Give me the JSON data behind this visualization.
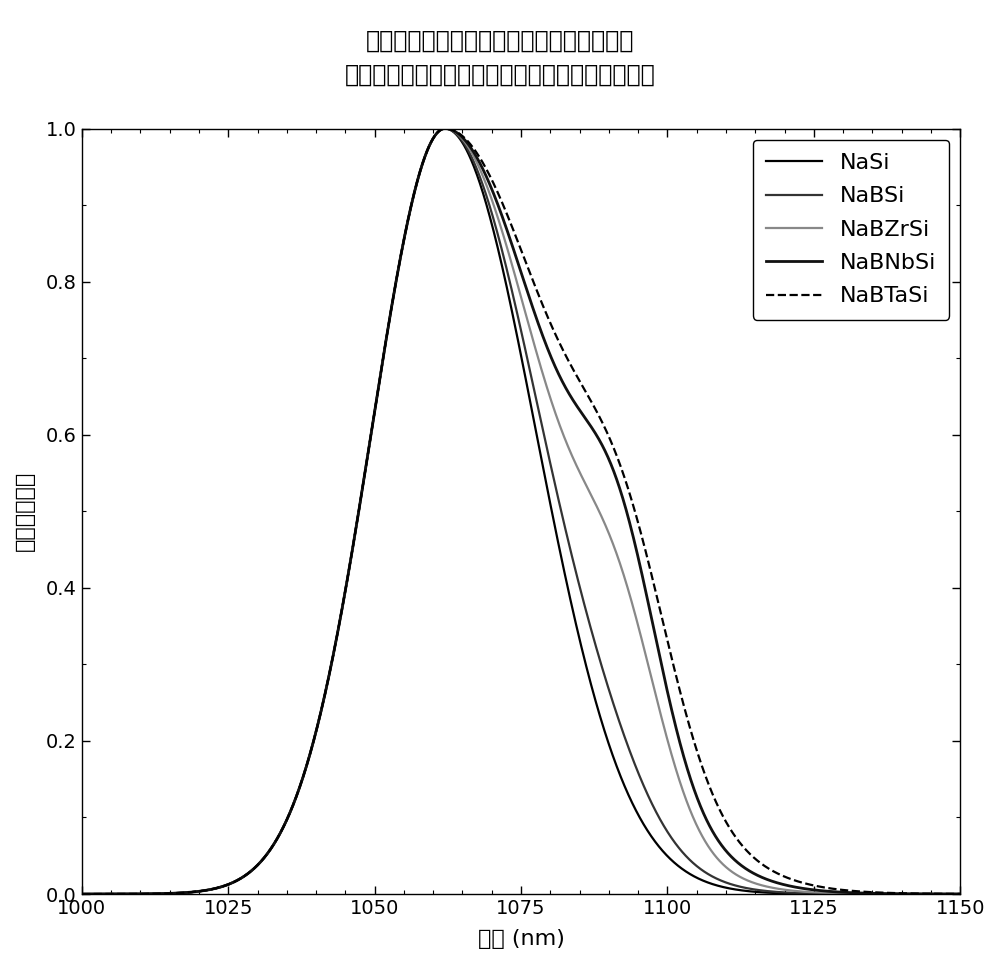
{
  "title_line1": "在钠硅酸盐体系中，在使用硼酸和过渡金属",
  "title_line2": "氧化物的条件下证实明显的带宽加宽和截面增大。",
  "ylabel": "标准化的发射",
  "xlabel": "波长 (nm)",
  "xlim": [
    1000,
    1150
  ],
  "ylim": [
    0.0,
    1.0
  ],
  "xticks": [
    1000,
    1025,
    1050,
    1075,
    1100,
    1125,
    1150
  ],
  "yticks": [
    0.0,
    0.2,
    0.4,
    0.6,
    0.8,
    1.0
  ],
  "series": [
    {
      "label": "NaSi",
      "color": "#000000",
      "lw": 1.6,
      "ls": "-"
    },
    {
      "label": "NaBSi",
      "color": "#333333",
      "lw": 1.6,
      "ls": "-"
    },
    {
      "label": "NaBZrSi",
      "color": "#888888",
      "lw": 1.6,
      "ls": "-"
    },
    {
      "label": "NaBNbSi",
      "color": "#111111",
      "lw": 2.0,
      "ls": "-"
    },
    {
      "label": "NaBTaSi",
      "color": "#000000",
      "lw": 1.6,
      "ls": "--"
    }
  ],
  "legend_loc": "upper right",
  "background_color": "#ffffff",
  "title_fontsize": 17,
  "label_fontsize": 16,
  "tick_fontsize": 14
}
